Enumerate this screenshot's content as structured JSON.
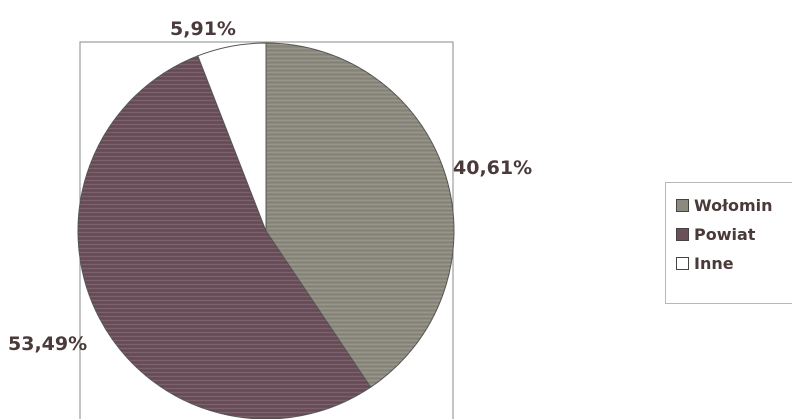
{
  "chart_data": {
    "type": "pie",
    "title": "",
    "categories": [
      "Wołomin",
      "Powiat",
      "Inne"
    ],
    "values": [
      40.61,
      53.49,
      5.91
    ],
    "value_labels": [
      "40,61%",
      "53,49%",
      "5,91%"
    ],
    "colors": [
      "#8c8a7e",
      "#6b4f5a",
      "#ffffff"
    ],
    "start_angle_deg": 0,
    "direction": "clockwise",
    "legend": {
      "position": "right",
      "entries": [
        "Wołomin",
        "Powiat",
        "Inne"
      ]
    }
  }
}
